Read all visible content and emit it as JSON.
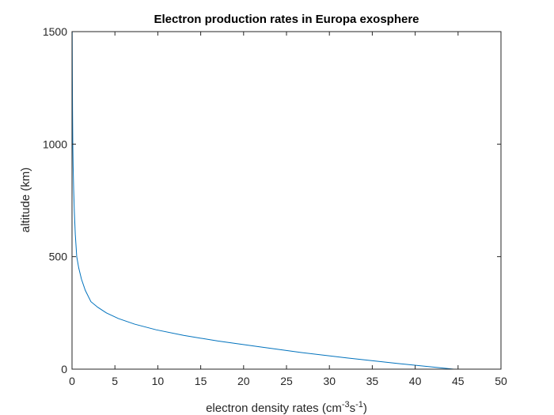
{
  "chart_data": {
    "type": "line",
    "title": "Electron production rates in Europa exosphere",
    "xlabel": {
      "base": "electron density rates (cm",
      "sup1": "-3",
      "mid": "s",
      "sup2": "-1",
      "end": ")"
    },
    "ylabel": "altitude (km)",
    "xlim": [
      0,
      50
    ],
    "ylim": [
      0,
      1500
    ],
    "xticks": [
      0,
      5,
      10,
      15,
      20,
      25,
      30,
      35,
      40,
      45,
      50
    ],
    "yticks": [
      0,
      500,
      1000,
      1500
    ],
    "grid": false,
    "series": [
      {
        "color": "#0072BD",
        "x": [
          44.5,
          38.0,
          32.0,
          26.5,
          21.7,
          17.0,
          13.0,
          9.8,
          7.3,
          5.4,
          4.0,
          3.0,
          2.2,
          1.55,
          1.1,
          0.78,
          0.55,
          0.38,
          0.27,
          0.19,
          0.13,
          0.09,
          0.06,
          0.04,
          0.02
        ],
        "y": [
          0,
          25,
          50,
          75,
          100,
          125,
          150,
          175,
          200,
          225,
          250,
          275,
          300,
          350,
          400,
          450,
          500,
          600,
          700,
          800,
          900,
          1000,
          1150,
          1300,
          1500
        ]
      }
    ]
  }
}
